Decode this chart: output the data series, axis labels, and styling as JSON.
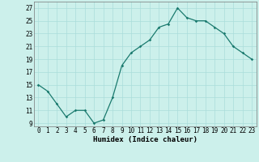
{
  "x": [
    0,
    1,
    2,
    3,
    4,
    5,
    6,
    7,
    8,
    9,
    10,
    11,
    12,
    13,
    14,
    15,
    16,
    17,
    18,
    19,
    20,
    21,
    22,
    23
  ],
  "y": [
    15,
    14,
    12,
    10,
    11,
    11,
    9,
    9.5,
    13,
    18,
    20,
    21,
    22,
    24,
    24.5,
    27,
    25.5,
    25,
    25,
    24,
    23,
    21,
    20,
    19
  ],
  "line_color": "#1a7a6e",
  "marker": "D",
  "marker_size": 1.8,
  "bg_color": "#ccf0eb",
  "grid_color": "#aaddda",
  "xlabel": "Humidex (Indice chaleur)",
  "xlim": [
    -0.5,
    23.5
  ],
  "ylim": [
    8.5,
    28
  ],
  "yticks": [
    9,
    11,
    13,
    15,
    17,
    19,
    21,
    23,
    25,
    27
  ],
  "xticks": [
    0,
    1,
    2,
    3,
    4,
    5,
    6,
    7,
    8,
    9,
    10,
    11,
    12,
    13,
    14,
    15,
    16,
    17,
    18,
    19,
    20,
    21,
    22,
    23
  ],
  "label_fontsize": 6.5,
  "tick_fontsize": 5.5
}
